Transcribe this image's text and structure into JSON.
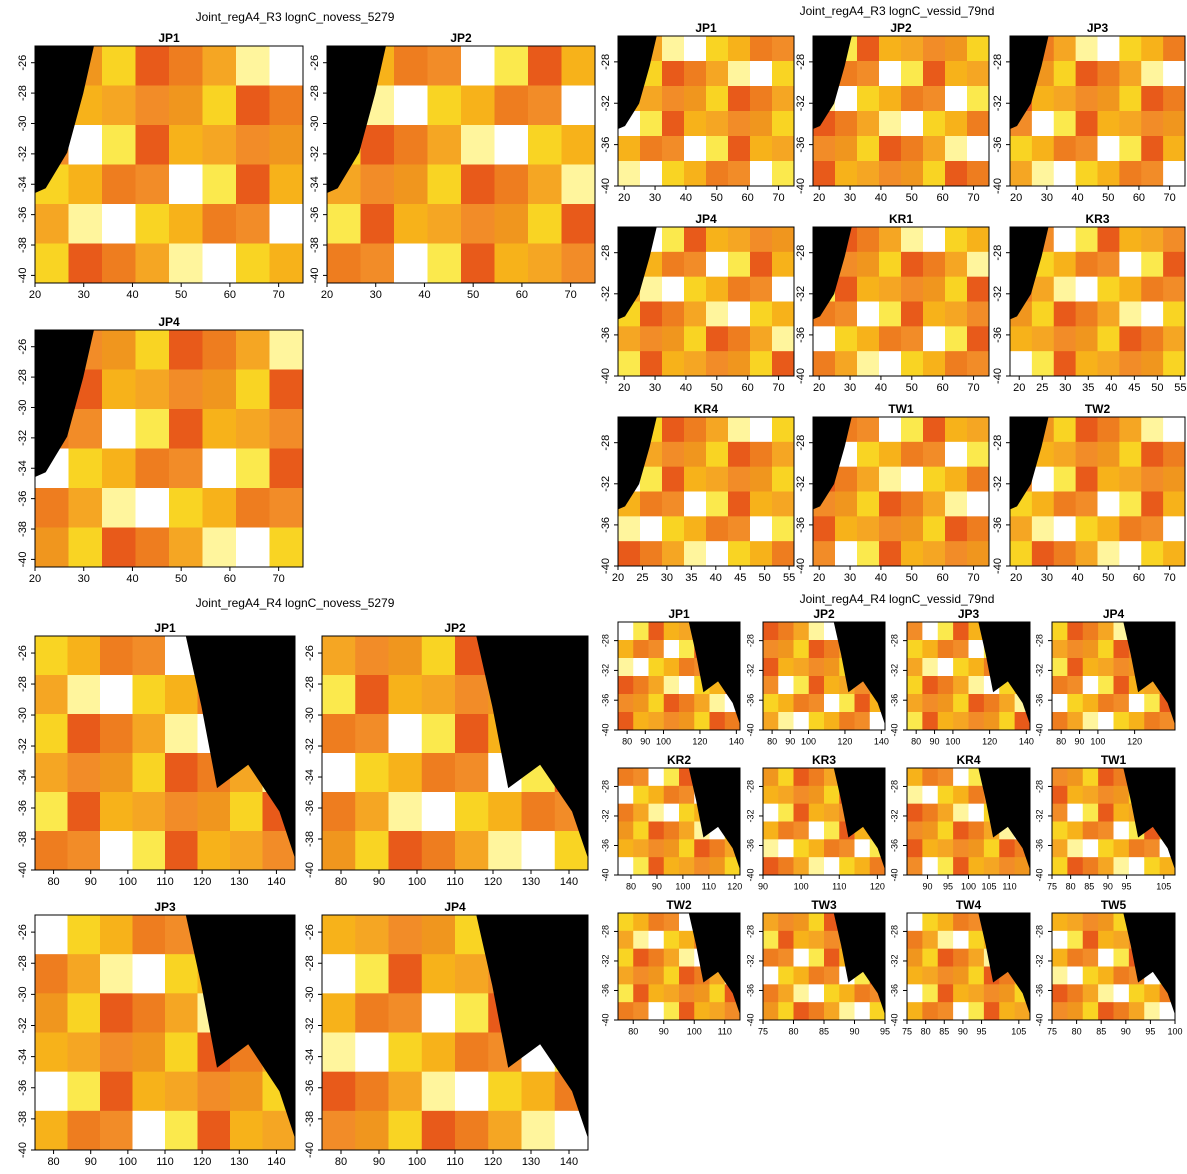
{
  "figures": [
    {
      "title": "Joint_regA4_R3 lognC_novess_5279",
      "panels": [
        {
          "title": "JP1",
          "xlim": [
            20,
            75
          ],
          "ylim": [
            -24.9,
            -40.5
          ],
          "xticks": [
            20,
            30,
            40,
            50,
            60,
            70
          ],
          "yticks": [
            -26,
            -28,
            -30,
            -32,
            -34,
            -36,
            -38,
            -40
          ]
        },
        {
          "title": "JP2",
          "xlim": [
            20,
            75
          ],
          "ylim": [
            -24.9,
            -40.5
          ],
          "xticks": [
            20,
            30,
            40,
            50,
            60,
            70
          ],
          "yticks": [
            -26,
            -28,
            -30,
            -32,
            -34,
            -36,
            -38,
            -40
          ]
        },
        {
          "title": "JP4",
          "xlim": [
            20,
            75
          ],
          "ylim": [
            -24.9,
            -40.5
          ],
          "xticks": [
            20,
            30,
            40,
            50,
            60,
            70
          ],
          "yticks": [
            -26,
            -28,
            -30,
            -32,
            -34,
            -36,
            -38,
            -40
          ]
        }
      ]
    },
    {
      "title": "Joint_regA4_R3 lognC_vessid_79nd",
      "panels": [
        {
          "title": "JP1",
          "xlim": [
            18,
            75
          ],
          "ylim": [
            -25.5,
            -40
          ],
          "xticks": [
            20,
            30,
            40,
            50,
            60,
            70
          ],
          "yticks": [
            -28,
            -32,
            -36,
            -40
          ]
        },
        {
          "title": "JP2",
          "xlim": [
            18,
            75
          ],
          "ylim": [
            -25.5,
            -40
          ],
          "xticks": [
            20,
            30,
            40,
            50,
            60,
            70
          ],
          "yticks": [
            -28,
            -32,
            -36,
            -40
          ]
        },
        {
          "title": "JP3",
          "xlim": [
            18,
            75
          ],
          "ylim": [
            -25.5,
            -40
          ],
          "xticks": [
            20,
            30,
            40,
            50,
            60,
            70
          ],
          "yticks": [
            -28,
            -32,
            -36,
            -40
          ]
        },
        {
          "title": "JP4",
          "xlim": [
            18,
            75
          ],
          "ylim": [
            -25.5,
            -40
          ],
          "xticks": [
            20,
            30,
            40,
            50,
            60,
            70
          ],
          "yticks": [
            -28,
            -32,
            -36,
            -40
          ]
        },
        {
          "title": "KR1",
          "xlim": [
            18,
            75
          ],
          "ylim": [
            -25.5,
            -40
          ],
          "xticks": [
            20,
            30,
            40,
            50,
            60,
            70
          ],
          "yticks": [
            -28,
            -32,
            -36,
            -40
          ]
        },
        {
          "title": "KR3",
          "xlim": [
            18,
            56
          ],
          "ylim": [
            -25.5,
            -40
          ],
          "xticks": [
            20,
            25,
            30,
            35,
            40,
            45,
            50,
            55
          ],
          "yticks": [
            -28,
            -32,
            -36,
            -40
          ]
        },
        {
          "title": "KR4",
          "xlim": [
            20,
            56
          ],
          "ylim": [
            -25.5,
            -40
          ],
          "xticks": [
            20,
            25,
            30,
            35,
            40,
            45,
            50,
            55
          ],
          "yticks": [
            -28,
            -32,
            -36,
            -40
          ]
        },
        {
          "title": "TW1",
          "xlim": [
            18,
            75
          ],
          "ylim": [
            -25.5,
            -40
          ],
          "xticks": [
            20,
            30,
            40,
            50,
            60,
            70
          ],
          "yticks": [
            -28,
            -32,
            -36,
            -40
          ]
        },
        {
          "title": "TW2",
          "xlim": [
            18,
            75
          ],
          "ylim": [
            -25.5,
            -40
          ],
          "xticks": [
            20,
            30,
            40,
            50,
            60,
            70
          ],
          "yticks": [
            -28,
            -32,
            -36,
            -40
          ]
        }
      ]
    },
    {
      "title": "Joint_regA4_R4 lognC_novess_5279",
      "panels": [
        {
          "title": "JP1",
          "xlim": [
            75,
            145
          ],
          "ylim": [
            -24.9,
            -40
          ],
          "xticks": [
            80,
            90,
            100,
            110,
            120,
            130,
            140
          ],
          "yticks": [
            -26,
            -28,
            -30,
            -32,
            -34,
            -36,
            -38,
            -40
          ]
        },
        {
          "title": "JP2",
          "xlim": [
            75,
            145
          ],
          "ylim": [
            -24.9,
            -40
          ],
          "xticks": [
            80,
            90,
            100,
            110,
            120,
            130,
            140
          ],
          "yticks": [
            -26,
            -28,
            -30,
            -32,
            -34,
            -36,
            -38,
            -40
          ]
        },
        {
          "title": "JP3",
          "xlim": [
            75,
            145
          ],
          "ylim": [
            -24.9,
            -40
          ],
          "xticks": [
            80,
            90,
            100,
            110,
            120,
            130,
            140
          ],
          "yticks": [
            -26,
            -28,
            -30,
            -32,
            -34,
            -36,
            -38,
            -40
          ]
        },
        {
          "title": "JP4",
          "xlim": [
            75,
            145
          ],
          "ylim": [
            -24.9,
            -40
          ],
          "xticks": [
            80,
            90,
            100,
            110,
            120,
            130,
            140
          ],
          "yticks": [
            -26,
            -28,
            -30,
            -32,
            -34,
            -36,
            -38,
            -40
          ]
        }
      ]
    },
    {
      "title": "Joint_regA4_R4 lognC_vessid_79nd",
      "panels": [
        {
          "title": "JP1",
          "xlim": [
            75,
            142
          ],
          "ylim": [
            -25.5,
            -40
          ],
          "xticks": [
            80,
            90,
            100,
            120,
            140
          ],
          "yticks": [
            -28,
            -32,
            -36,
            -40
          ]
        },
        {
          "title": "JP2",
          "xlim": [
            75,
            142
          ],
          "ylim": [
            -25.5,
            -40
          ],
          "xticks": [
            80,
            90,
            100,
            120,
            140
          ],
          "yticks": [
            -28,
            -32,
            -36,
            -40
          ]
        },
        {
          "title": "JP3",
          "xlim": [
            75,
            142
          ],
          "ylim": [
            -25.5,
            -40
          ],
          "xticks": [
            80,
            90,
            100,
            120,
            140
          ],
          "yticks": [
            -28,
            -32,
            -36,
            -40
          ]
        },
        {
          "title": "JP4",
          "xlim": [
            75,
            142
          ],
          "ylim": [
            -25.5,
            -40
          ],
          "xticks": [
            80,
            90,
            100,
            120
          ],
          "yticks": [
            -28,
            -32,
            -36,
            -40
          ]
        },
        {
          "title": "KR2",
          "xlim": [
            75,
            122
          ],
          "ylim": [
            -25.5,
            -40
          ],
          "xticks": [
            80,
            90,
            100,
            110,
            120
          ],
          "yticks": [
            -28,
            -32,
            -36,
            -40
          ]
        },
        {
          "title": "KR3",
          "xlim": [
            90,
            122
          ],
          "ylim": [
            -25.5,
            -40
          ],
          "xticks": [
            90,
            100,
            110,
            120
          ],
          "yticks": [
            -28,
            -32,
            -36,
            -40
          ]
        },
        {
          "title": "KR4",
          "xlim": [
            85,
            115
          ],
          "ylim": [
            -25.5,
            -40
          ],
          "xticks": [
            90,
            95,
            100,
            105,
            110
          ],
          "yticks": [
            -28,
            -32,
            -36,
            -40
          ]
        },
        {
          "title": "TW1",
          "xlim": [
            75,
            108
          ],
          "ylim": [
            -25.5,
            -40
          ],
          "xticks": [
            75,
            80,
            85,
            90,
            95,
            105
          ],
          "yticks": [
            -28,
            -32,
            -36,
            -40
          ]
        },
        {
          "title": "TW2",
          "xlim": [
            75,
            115
          ],
          "ylim": [
            -25.5,
            -40
          ],
          "xticks": [
            80,
            90,
            100,
            110
          ],
          "yticks": [
            -28,
            -32,
            -36,
            -40
          ]
        },
        {
          "title": "TW3",
          "xlim": [
            75,
            95
          ],
          "ylim": [
            -25.5,
            -40
          ],
          "xticks": [
            75,
            80,
            85,
            90,
            95
          ],
          "yticks": [
            -28,
            -32,
            -36,
            -40
          ]
        },
        {
          "title": "TW4",
          "xlim": [
            75,
            108
          ],
          "ylim": [
            -25.5,
            -40
          ],
          "xticks": [
            75,
            80,
            85,
            90,
            95,
            105
          ],
          "yticks": [
            -28,
            -32,
            -36,
            -40
          ]
        },
        {
          "title": "TW5",
          "xlim": [
            75,
            100
          ],
          "ylim": [
            -25.5,
            -40
          ],
          "xticks": [
            75,
            80,
            85,
            90,
            95,
            100
          ],
          "yticks": [
            -28,
            -32,
            -36,
            -40
          ]
        }
      ]
    }
  ]
}
